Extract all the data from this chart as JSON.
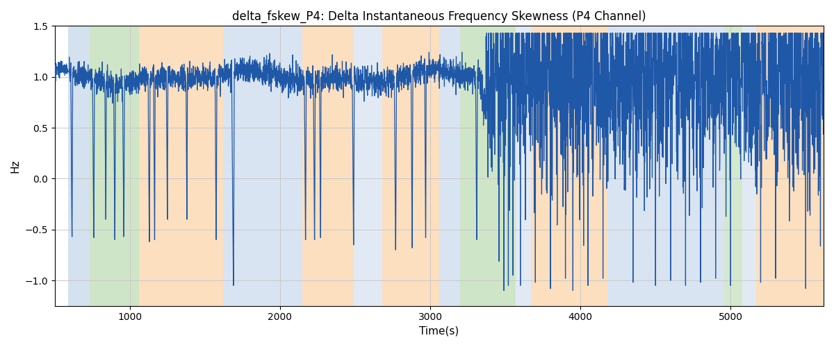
{
  "title": "delta_fskew_P4: Delta Instantaneous Frequency Skewness (P4 Channel)",
  "xlabel": "Time(s)",
  "ylabel": "Hz",
  "ylim": [
    -1.25,
    1.5
  ],
  "xlim": [
    500,
    5620
  ],
  "line_color": "#2058a8",
  "line_width": 0.9,
  "background_color": "#ffffff",
  "grid_color": "#c8c8c8",
  "bands": [
    {
      "xmin": 590,
      "xmax": 730,
      "color": "#aac4e0",
      "alpha": 0.5
    },
    {
      "xmin": 730,
      "xmax": 1060,
      "color": "#a0cc90",
      "alpha": 0.5
    },
    {
      "xmin": 1060,
      "xmax": 1620,
      "color": "#f8c080",
      "alpha": 0.5
    },
    {
      "xmin": 1620,
      "xmax": 2150,
      "color": "#aac4e0",
      "alpha": 0.45
    },
    {
      "xmin": 2150,
      "xmax": 2490,
      "color": "#f8c080",
      "alpha": 0.5
    },
    {
      "xmin": 2490,
      "xmax": 2680,
      "color": "#aac4e0",
      "alpha": 0.35
    },
    {
      "xmin": 2680,
      "xmax": 3060,
      "color": "#f8c080",
      "alpha": 0.5
    },
    {
      "xmin": 3060,
      "xmax": 3200,
      "color": "#aac4e0",
      "alpha": 0.45
    },
    {
      "xmin": 3200,
      "xmax": 3570,
      "color": "#a0cc90",
      "alpha": 0.5
    },
    {
      "xmin": 3570,
      "xmax": 3670,
      "color": "#aac4e0",
      "alpha": 0.35
    },
    {
      "xmin": 3670,
      "xmax": 4180,
      "color": "#f8c080",
      "alpha": 0.5
    },
    {
      "xmin": 4180,
      "xmax": 4960,
      "color": "#aac4e0",
      "alpha": 0.45
    },
    {
      "xmin": 4960,
      "xmax": 5080,
      "color": "#a0cc90",
      "alpha": 0.45
    },
    {
      "xmin": 5080,
      "xmax": 5170,
      "color": "#aac4e0",
      "alpha": 0.35
    },
    {
      "xmin": 5170,
      "xmax": 5620,
      "color": "#f8c080",
      "alpha": 0.5
    }
  ],
  "xticks": [
    1000,
    2000,
    3000,
    4000,
    5000
  ],
  "yticks": [
    -1.0,
    -0.5,
    0.0,
    0.5,
    1.0,
    1.5
  ]
}
